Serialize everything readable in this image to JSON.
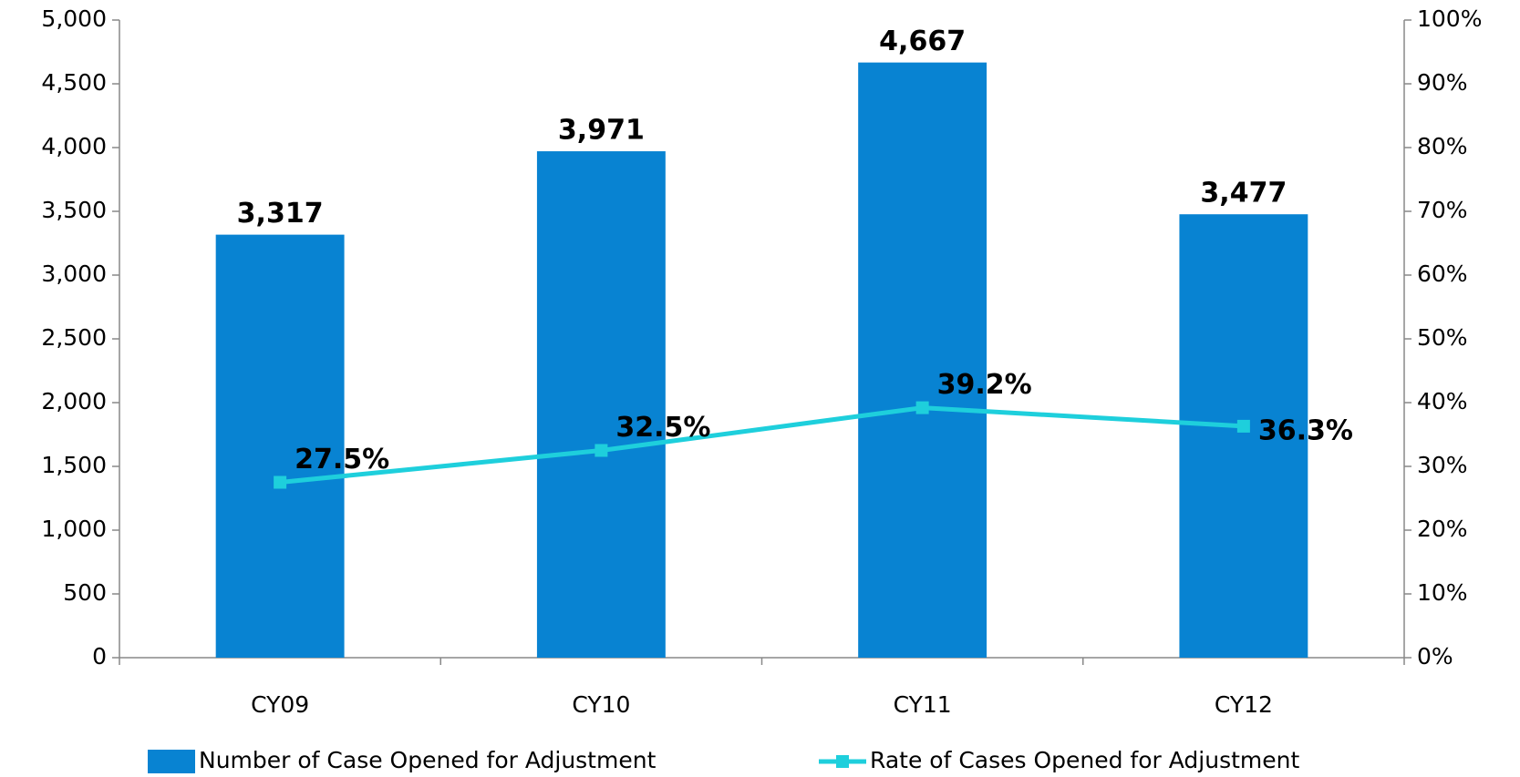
{
  "chart_data": {
    "type": "bar",
    "categories": [
      "CY09",
      "CY10",
      "CY11",
      "CY12"
    ],
    "series": [
      {
        "name": "Number of Case Opened for Adjustment",
        "type": "bar",
        "color": "#0883d2",
        "values": [
          3317,
          3971,
          4667,
          3477
        ],
        "value_labels": [
          "3,317",
          "3,971",
          "4,667",
          "3,477"
        ]
      },
      {
        "name": "Rate of Cases Opened for Adjustment",
        "type": "line",
        "axis": "y2",
        "color": "#1ecfdc",
        "values": [
          27.5,
          32.5,
          39.2,
          36.3
        ],
        "value_labels": [
          "27.5%",
          "32.5%",
          "39.2%",
          "36.3%"
        ]
      }
    ],
    "ylim": [
      0,
      5000
    ],
    "yticks": [
      0,
      500,
      {
        "value": 1000,
        "label": "1,000"
      },
      {
        "value": 1500,
        "label": "1,500"
      },
      {
        "value": 2000,
        "label": "2,000"
      },
      {
        "value": 2500,
        "label": "2,500"
      },
      {
        "value": 3000,
        "label": "3,000"
      },
      {
        "value": 3500,
        "label": "3,500"
      },
      {
        "value": 4000,
        "label": "4,000"
      },
      {
        "value": 4500,
        "label": "4,500"
      },
      {
        "value": 5000,
        "label": "5,000"
      }
    ],
    "y2lim": [
      0,
      100
    ],
    "y2ticks": [
      {
        "value": 0,
        "label": "0%"
      },
      {
        "value": 10,
        "label": "10%"
      },
      {
        "value": 20,
        "label": "20%"
      },
      {
        "value": 30,
        "label": "30%"
      },
      {
        "value": 40,
        "label": "40%"
      },
      {
        "value": 50,
        "label": "50%"
      },
      {
        "value": 60,
        "label": "60%"
      },
      {
        "value": 70,
        "label": "70%"
      },
      {
        "value": 80,
        "label": "80%"
      },
      {
        "value": 90,
        "label": "90%"
      },
      {
        "value": 100,
        "label": "100%"
      }
    ],
    "grid": false,
    "legend": "bottom"
  }
}
